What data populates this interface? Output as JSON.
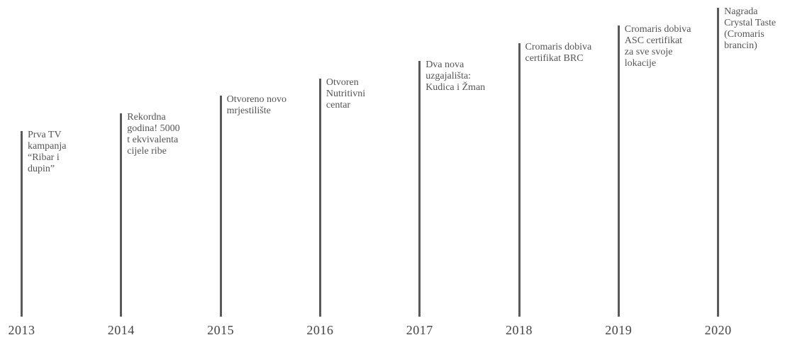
{
  "events": [
    {
      "year": "2013",
      "lines": [
        "Prva TV",
        "kampanja",
        "“Ribar i",
        "dupin”"
      ]
    },
    {
      "year": "2014",
      "lines": [
        "Rekordna",
        "godina! 5000",
        "t ekvivalenta",
        "cijele ribe"
      ]
    },
    {
      "year": "2015",
      "lines": [
        "Otvoreno novo",
        "mrjestilište"
      ]
    },
    {
      "year": "2016",
      "lines": [
        "Otvoren",
        "Nutritivni",
        "centar"
      ]
    },
    {
      "year": "2017",
      "lines": [
        "Dva nova",
        "uzgajališta:",
        "Kudica i Žman"
      ]
    },
    {
      "year": "2018",
      "lines": [
        "Cromaris dobiva",
        "certifikat BRC"
      ]
    },
    {
      "year": "2019",
      "lines": [
        "Cromaris dobiva",
        "ASC certifikat",
        "za sve svoje",
        "lokacije"
      ]
    },
    {
      "year": "2020",
      "lines": [
        "Nagrada",
        "Crystal Taste",
        "(Cromaris",
        "brancin)"
      ]
    }
  ]
}
